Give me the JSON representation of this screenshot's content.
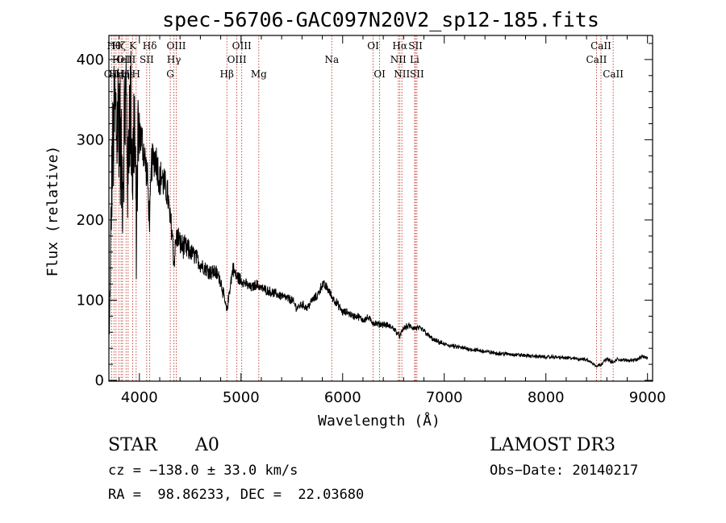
{
  "chart_data": {
    "type": "line",
    "title": "spec-56706-GAC097N20V2_sp12-185.fits",
    "xlabel": "Wavelength (Å)",
    "ylabel": "Flux (relative)",
    "xlim": [
      3700,
      9050
    ],
    "ylim": [
      -10,
      4300
    ],
    "xticks": [
      4000,
      5000,
      6000,
      7000,
      8000,
      9000
    ],
    "yticks": [
      0,
      100,
      200,
      300,
      400
    ],
    "ytick_scale": 10,
    "grid": false,
    "spectrum_anchors": [
      [
        3700,
        50
      ],
      [
        3715,
        1500
      ],
      [
        3730,
        2600
      ],
      [
        3745,
        3000
      ],
      [
        3760,
        3300
      ],
      [
        3780,
        3150
      ],
      [
        3800,
        3500
      ],
      [
        3820,
        2700
      ],
      [
        3835,
        2400
      ],
      [
        3850,
        3200
      ],
      [
        3870,
        3600
      ],
      [
        3889,
        2300
      ],
      [
        3900,
        3500
      ],
      [
        3920,
        3300
      ],
      [
        3934,
        2500
      ],
      [
        3950,
        3400
      ],
      [
        3970,
        1700
      ],
      [
        3985,
        3000
      ],
      [
        4000,
        3100
      ],
      [
        4020,
        3000
      ],
      [
        4040,
        2900
      ],
      [
        4060,
        2700
      ],
      [
        4080,
        2500
      ],
      [
        4101,
        1950
      ],
      [
        4120,
        2700
      ],
      [
        4140,
        2750
      ],
      [
        4160,
        2800
      ],
      [
        4180,
        2650
      ],
      [
        4200,
        2500
      ],
      [
        4220,
        2550
      ],
      [
        4240,
        2450
      ],
      [
        4260,
        2400
      ],
      [
        4280,
        2300
      ],
      [
        4300,
        2000
      ],
      [
        4320,
        1900
      ],
      [
        4340,
        1450
      ],
      [
        4360,
        1750
      ],
      [
        4380,
        1800
      ],
      [
        4400,
        1700
      ],
      [
        4450,
        1650
      ],
      [
        4500,
        1600
      ],
      [
        4550,
        1550
      ],
      [
        4600,
        1450
      ],
      [
        4650,
        1400
      ],
      [
        4700,
        1350
      ],
      [
        4750,
        1350
      ],
      [
        4800,
        1250
      ],
      [
        4830,
        1050
      ],
      [
        4861,
        850
      ],
      [
        4890,
        1150
      ],
      [
        4920,
        1400
      ],
      [
        4950,
        1300
      ],
      [
        5000,
        1250
      ],
      [
        5050,
        1200
      ],
      [
        5100,
        1150
      ],
      [
        5150,
        1200
      ],
      [
        5200,
        1150
      ],
      [
        5300,
        1100
      ],
      [
        5400,
        1050
      ],
      [
        5500,
        1000
      ],
      [
        5550,
        900
      ],
      [
        5600,
        950
      ],
      [
        5650,
        900
      ],
      [
        5700,
        1000
      ],
      [
        5750,
        1050
      ],
      [
        5800,
        1200
      ],
      [
        5850,
        1150
      ],
      [
        5890,
        1050
      ],
      [
        5920,
        1000
      ],
      [
        5950,
        950
      ],
      [
        6000,
        850
      ],
      [
        6050,
        850
      ],
      [
        6100,
        800
      ],
      [
        6150,
        800
      ],
      [
        6200,
        750
      ],
      [
        6250,
        780
      ],
      [
        6300,
        720
      ],
      [
        6350,
        700
      ],
      [
        6400,
        700
      ],
      [
        6450,
        680
      ],
      [
        6500,
        650
      ],
      [
        6563,
        550
      ],
      [
        6600,
        650
      ],
      [
        6650,
        680
      ],
      [
        6700,
        650
      ],
      [
        6750,
        650
      ],
      [
        6800,
        620
      ],
      [
        6850,
        550
      ],
      [
        6900,
        500
      ],
      [
        7000,
        450
      ],
      [
        7100,
        420
      ],
      [
        7200,
        400
      ],
      [
        7300,
        380
      ],
      [
        7400,
        360
      ],
      [
        7500,
        340
      ],
      [
        7600,
        330
      ],
      [
        7700,
        320
      ],
      [
        7800,
        310
      ],
      [
        7900,
        300
      ],
      [
        8000,
        290
      ],
      [
        8100,
        290
      ],
      [
        8200,
        280
      ],
      [
        8300,
        270
      ],
      [
        8400,
        260
      ],
      [
        8498,
        180
      ],
      [
        8542,
        200
      ],
      [
        8600,
        270
      ],
      [
        8662,
        220
      ],
      [
        8700,
        260
      ],
      [
        8800,
        250
      ],
      [
        8900,
        260
      ],
      [
        8950,
        300
      ],
      [
        9000,
        280
      ]
    ],
    "lines": [
      {
        "wl": 3727,
        "label": "OII",
        "row": 3
      },
      {
        "wl": 3750,
        "label": "Hθ",
        "row": 1
      },
      {
        "wl": 3770,
        "label": "Hη",
        "row": 3
      },
      {
        "wl": 3798,
        "label": "Hζ",
        "row": 1
      },
      {
        "wl": 3820,
        "label": "HeI",
        "row": 2
      },
      {
        "wl": 3835,
        "label": "Hη",
        "row": 3
      },
      {
        "wl": 3869,
        "label": "OIII",
        "row": 2
      },
      {
        "wl": 3889,
        "label": "Hε",
        "row": 3
      },
      {
        "wl": 3934,
        "label": "K",
        "row": 1
      },
      {
        "wl": 3968,
        "label": "H",
        "row": 3
      },
      {
        "wl": 4072,
        "label": "SII",
        "row": 2
      },
      {
        "wl": 4102,
        "label": "Hδ",
        "row": 1
      },
      {
        "wl": 4304,
        "label": "G",
        "row": 3
      },
      {
        "wl": 4340,
        "label": "Hγ",
        "row": 2
      },
      {
        "wl": 4363,
        "label": "OIII",
        "row": 1
      },
      {
        "wl": 4861,
        "label": "Hβ",
        "row": 3
      },
      {
        "wl": 4959,
        "label": "OIII",
        "row": 2
      },
      {
        "wl": 5007,
        "label": "OIII",
        "row": 1
      },
      {
        "wl": 5175,
        "label": "Mg",
        "row": 3
      },
      {
        "wl": 5893,
        "label": "Na",
        "row": 2
      },
      {
        "wl": 6300,
        "label": "OI",
        "row": 1
      },
      {
        "wl": 6364,
        "label": "OI",
        "row": 3
      },
      {
        "wl": 6548,
        "label": "NII",
        "row": 2
      },
      {
        "wl": 6563,
        "label": "Hα",
        "row": 1
      },
      {
        "wl": 6583,
        "label": "NII",
        "row": 3
      },
      {
        "wl": 6708,
        "label": "Li",
        "row": 2
      },
      {
        "wl": 6717,
        "label": "SII",
        "row": 1
      },
      {
        "wl": 6731,
        "label": "SII",
        "row": 3
      },
      {
        "wl": 8498,
        "label": "CaII",
        "row": 2
      },
      {
        "wl": 8542,
        "label": "CaII",
        "row": 1
      },
      {
        "wl": 8662,
        "label": "CaII",
        "row": 3
      }
    ],
    "line_color": "#c0392b"
  },
  "info": {
    "class": "STAR",
    "subclass": "A0",
    "survey": "LAMOST DR3",
    "cz": "cz = −138.0 ± 33.0 km/s",
    "obs_date": "Obs−Date: 20140217",
    "radec": "RA =  98.86233, DEC =  22.03680"
  }
}
